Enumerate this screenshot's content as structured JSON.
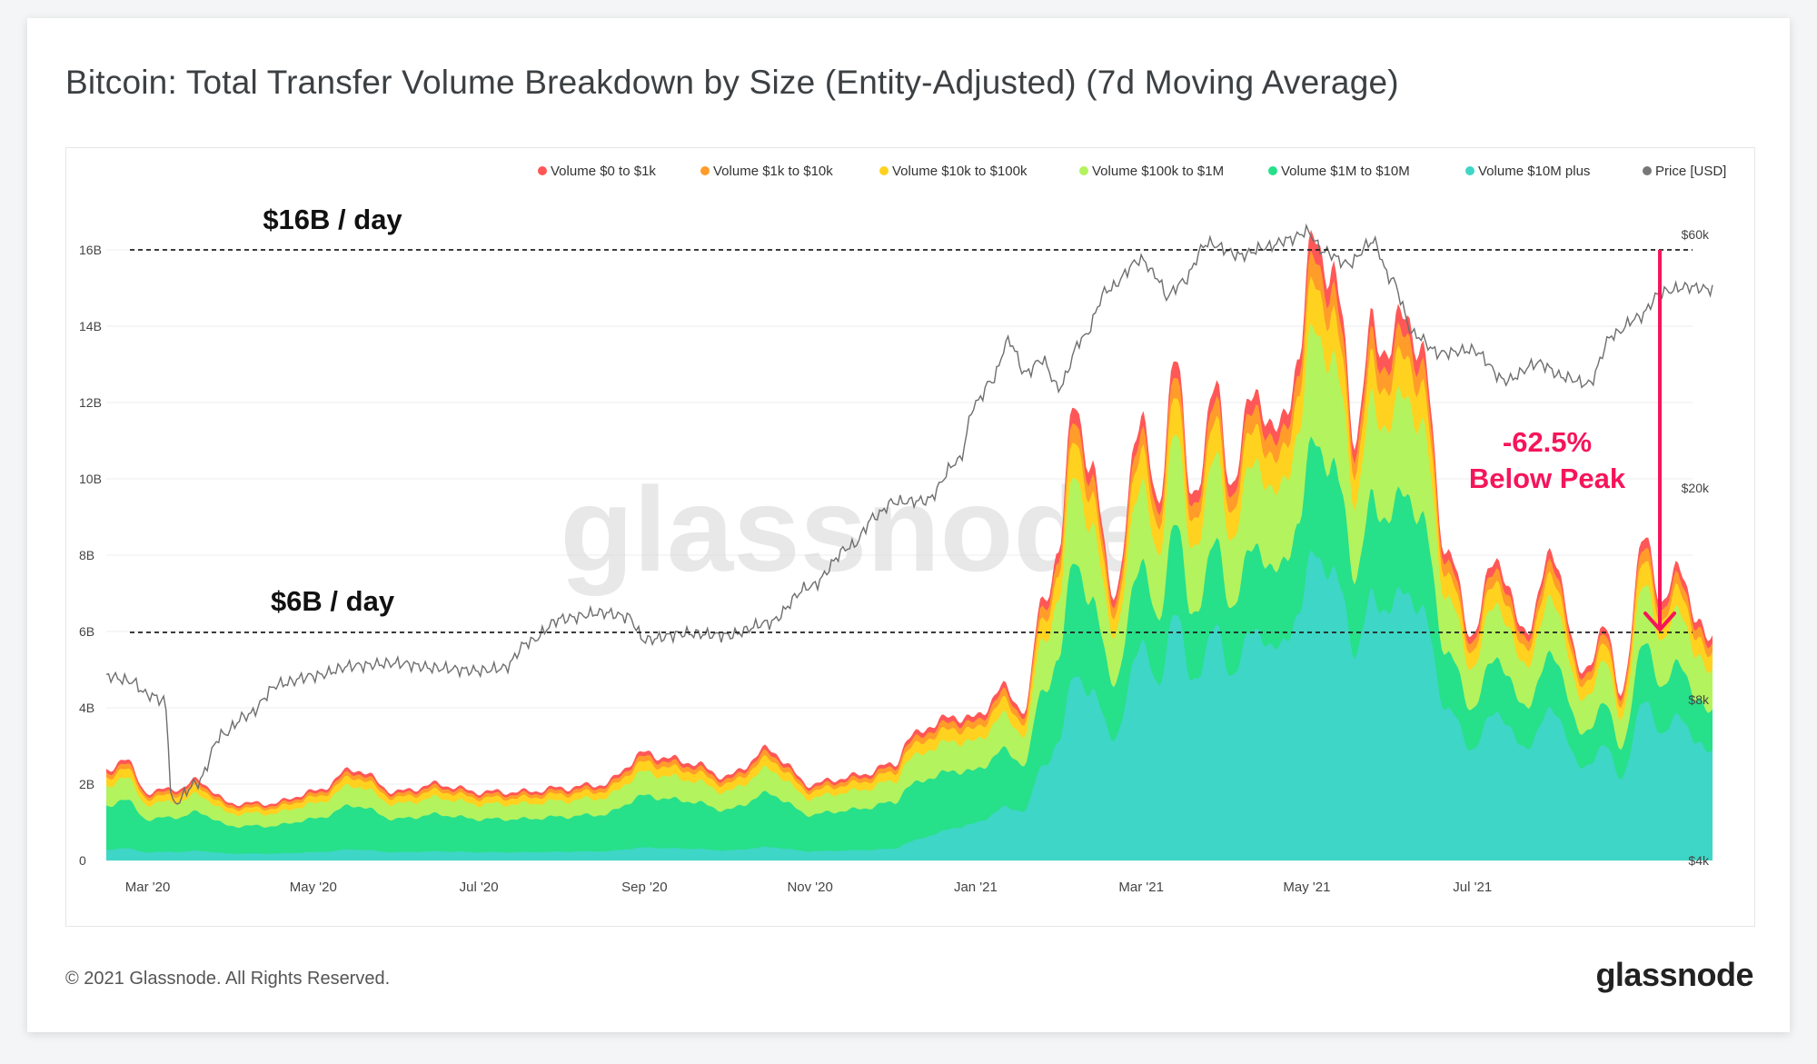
{
  "title": "Bitcoin: Total Transfer Volume Breakdown by Size (Entity-Adjusted) (7d Moving Average)",
  "footer": {
    "copyright": "© 2021 Glassnode. All Rights Reserved.",
    "logo": "glassnode"
  },
  "watermark": "glassnode",
  "chart_data": {
    "type": "area",
    "stacked": true,
    "title": "Bitcoin: Total Transfer Volume Breakdown by Size (Entity-Adjusted) (7d Moving Average)",
    "legend_position": "top-right",
    "legend": [
      "Volume $0 to $1k",
      "Volume $1k to $10k",
      "Volume $10k to $100k",
      "Volume $100k to $1M",
      "Volume $1M to $10M",
      "Volume $10M plus",
      "Price [USD]"
    ],
    "x_ticks": [
      "Mar '20",
      "May '20",
      "Jul '20",
      "Sep '20",
      "Nov '20",
      "Jan '21",
      "Mar '21",
      "May '21",
      "Jul '21"
    ],
    "x_tick_months": [
      1,
      3,
      5,
      7,
      9,
      11,
      13,
      15,
      17
    ],
    "x_range_months": [
      0.5,
      19.9
    ],
    "y_left": {
      "ticks": [
        "0",
        "2B",
        "4B",
        "6B",
        "8B",
        "10B",
        "12B",
        "14B",
        "16B"
      ],
      "values": [
        0,
        2,
        4,
        6,
        8,
        10,
        12,
        14,
        16
      ],
      "range": [
        0,
        16
      ],
      "unit": "billion USD"
    },
    "y_right": {
      "ticks": [
        "$4k",
        "$8k",
        "$20k",
        "$60k"
      ],
      "values": [
        4000,
        8000,
        20000,
        60000
      ],
      "scale": "log",
      "range": [
        4000,
        60000
      ]
    },
    "series": [
      {
        "name": "Volume $10M plus",
        "color": "#3ed6c6"
      },
      {
        "name": "Volume $1M to $10M",
        "color": "#27e08a"
      },
      {
        "name": "Volume $100k to $1M",
        "color": "#b3f35e"
      },
      {
        "name": "Volume $10k to $100k",
        "color": "#ffd21f"
      },
      {
        "name": "Volume $1k to $10k",
        "color": "#ff9c2a"
      },
      {
        "name": "Volume $0 to $1k",
        "color": "#ff5757"
      },
      {
        "name": "Price [USD]",
        "color": "#777777"
      }
    ],
    "total_volume_anchors": [
      [
        0.5,
        2.3
      ],
      [
        0.7,
        2.7
      ],
      [
        1.0,
        1.8
      ],
      [
        1.4,
        1.9
      ],
      [
        1.6,
        2.1
      ],
      [
        2.0,
        1.5
      ],
      [
        2.5,
        1.5
      ],
      [
        3.0,
        1.8
      ],
      [
        3.5,
        2.4
      ],
      [
        4.0,
        1.8
      ],
      [
        4.5,
        2.0
      ],
      [
        5.0,
        1.8
      ],
      [
        5.5,
        1.8
      ],
      [
        6.0,
        1.9
      ],
      [
        6.5,
        2.0
      ],
      [
        7.0,
        2.8
      ],
      [
        7.5,
        2.6
      ],
      [
        8.0,
        2.2
      ],
      [
        8.5,
        2.9
      ],
      [
        9.0,
        2.0
      ],
      [
        9.5,
        2.2
      ],
      [
        10.0,
        2.5
      ],
      [
        10.2,
        3.2
      ],
      [
        10.5,
        3.6
      ],
      [
        10.8,
        3.8
      ],
      [
        11.0,
        3.7
      ],
      [
        11.3,
        4.5
      ],
      [
        11.6,
        4.0
      ],
      [
        11.8,
        6.8
      ],
      [
        12.0,
        8.0
      ],
      [
        12.2,
        12.3
      ],
      [
        12.4,
        10.0
      ],
      [
        12.7,
        7.0
      ],
      [
        13.0,
        12.0
      ],
      [
        13.2,
        9.0
      ],
      [
        13.4,
        13.6
      ],
      [
        13.6,
        9.5
      ],
      [
        13.9,
        12.2
      ],
      [
        14.1,
        10.0
      ],
      [
        14.4,
        12.5
      ],
      [
        14.6,
        11.0
      ],
      [
        14.9,
        13.0
      ],
      [
        15.1,
        16.8
      ],
      [
        15.3,
        15.0
      ],
      [
        15.4,
        14.6
      ],
      [
        15.6,
        11.0
      ],
      [
        15.8,
        14.2
      ],
      [
        16.0,
        13.2
      ],
      [
        16.2,
        14.6
      ],
      [
        16.4,
        13.0
      ],
      [
        16.7,
        8.0
      ],
      [
        17.0,
        6.0
      ],
      [
        17.3,
        8.0
      ],
      [
        17.6,
        6.0
      ],
      [
        18.0,
        8.0
      ],
      [
        18.3,
        4.9
      ],
      [
        18.6,
        6.0
      ],
      [
        18.8,
        4.5
      ],
      [
        19.1,
        8.7
      ],
      [
        19.3,
        6.5
      ],
      [
        19.5,
        8.0
      ],
      [
        19.7,
        6.1
      ],
      [
        19.9,
        6.0
      ]
    ],
    "price_anchors": [
      [
        0.5,
        8900
      ],
      [
        0.8,
        8700
      ],
      [
        1.0,
        8200
      ],
      [
        1.2,
        8000
      ],
      [
        1.3,
        5100
      ],
      [
        1.6,
        5600
      ],
      [
        1.9,
        6900
      ],
      [
        2.2,
        7500
      ],
      [
        2.6,
        8600
      ],
      [
        3.0,
        8900
      ],
      [
        3.5,
        9300
      ],
      [
        4.0,
        9400
      ],
      [
        4.5,
        9200
      ],
      [
        5.0,
        9100
      ],
      [
        5.3,
        9200
      ],
      [
        5.6,
        10300
      ],
      [
        6.0,
        11400
      ],
      [
        6.5,
        11700
      ],
      [
        6.8,
        11500
      ],
      [
        7.0,
        10400
      ],
      [
        7.5,
        10700
      ],
      [
        8.0,
        10600
      ],
      [
        8.5,
        11200
      ],
      [
        9.0,
        13100
      ],
      [
        9.5,
        15600
      ],
      [
        9.8,
        17800
      ],
      [
        10.0,
        18900
      ],
      [
        10.4,
        19000
      ],
      [
        10.8,
        22600
      ],
      [
        11.0,
        29000
      ],
      [
        11.2,
        32000
      ],
      [
        11.4,
        38000
      ],
      [
        11.6,
        33000
      ],
      [
        11.8,
        35000
      ],
      [
        12.0,
        31000
      ],
      [
        12.3,
        38500
      ],
      [
        12.6,
        47500
      ],
      [
        13.0,
        54000
      ],
      [
        13.2,
        50000
      ],
      [
        13.3,
        46000
      ],
      [
        13.5,
        49000
      ],
      [
        13.8,
        58000
      ],
      [
        14.2,
        55000
      ],
      [
        14.5,
        57000
      ],
      [
        14.8,
        59000
      ],
      [
        15.0,
        61000
      ],
      [
        15.2,
        56000
      ],
      [
        15.5,
        53000
      ],
      [
        15.8,
        58500
      ],
      [
        16.0,
        50000
      ],
      [
        16.3,
        39000
      ],
      [
        16.6,
        36000
      ],
      [
        17.0,
        36500
      ],
      [
        17.4,
        32000
      ],
      [
        17.8,
        34500
      ],
      [
        18.1,
        32500
      ],
      [
        18.4,
        31500
      ],
      [
        18.7,
        39000
      ],
      [
        19.0,
        42000
      ],
      [
        19.3,
        47000
      ],
      [
        19.6,
        48000
      ],
      [
        19.9,
        47500
      ]
    ],
    "annotations": [
      {
        "text": "$16B / day",
        "value_billion": 16
      },
      {
        "text": "$6B / day",
        "value_billion": 6
      },
      {
        "text": "-62.5%",
        "line": 1
      },
      {
        "text": "Below Peak",
        "line": 2
      }
    ],
    "annotation_color": "#f5155a"
  }
}
